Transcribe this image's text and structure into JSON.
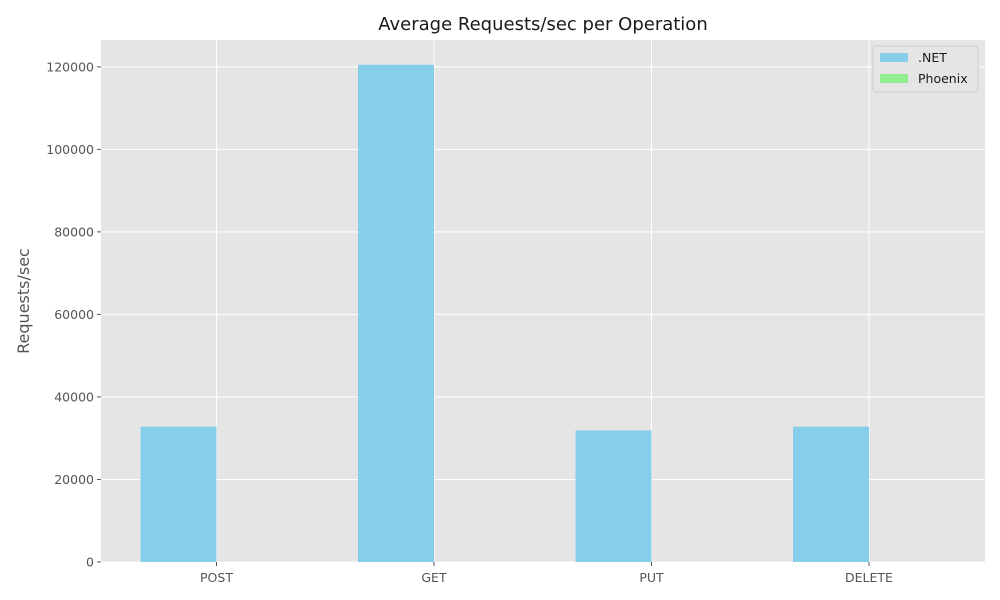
{
  "chart_data": {
    "type": "bar",
    "title": "Average Requests/sec per Operation",
    "xlabel": "",
    "ylabel": "Requests/sec",
    "categories": [
      "POST",
      "GET",
      "PUT",
      "DELETE"
    ],
    "series": [
      {
        "name": ".NET",
        "color": "#87CEEB",
        "values": [
          32800,
          120500,
          31900,
          32800
        ]
      },
      {
        "name": "Phoenix",
        "color": "#90EE90",
        "values": [
          0,
          0,
          0,
          0
        ]
      }
    ],
    "ylim": [
      0,
      126500
    ],
    "yticks": [
      0,
      20000,
      40000,
      60000,
      80000,
      100000,
      120000
    ],
    "ytick_labels": [
      "0",
      "20000",
      "40000",
      "60000",
      "80000",
      "100000",
      "120000"
    ],
    "grid": true,
    "legend_position": "top-right"
  }
}
